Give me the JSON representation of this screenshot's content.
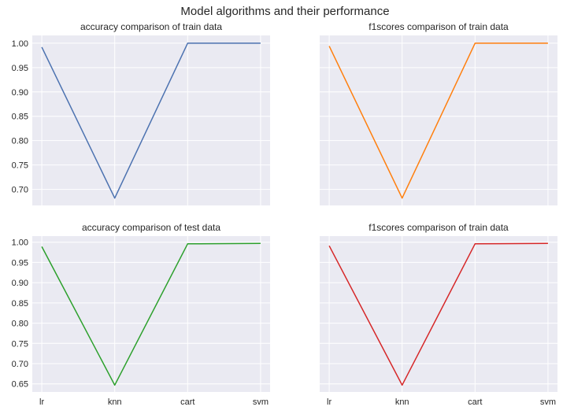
{
  "figure": {
    "title": "Model algorithms and their performance"
  },
  "chart_data": [
    {
      "type": "line",
      "title": "accuracy comparison of train data",
      "categories": [
        "lr",
        "knn",
        "cart",
        "svm"
      ],
      "series": [
        {
          "values": [
            0.992,
            0.682,
            1.0,
            1.0
          ],
          "color": "#4c72b0"
        }
      ],
      "yticks": [
        0.7,
        0.75,
        0.8,
        0.85,
        0.9,
        0.95,
        1.0
      ],
      "ylim": [
        0.667,
        1.016
      ],
      "show_xticklabels": false,
      "show_yticklabels": true,
      "grid": true
    },
    {
      "type": "line",
      "title": "f1scores comparison of train data",
      "categories": [
        "lr",
        "knn",
        "cart",
        "svm"
      ],
      "series": [
        {
          "values": [
            0.994,
            0.682,
            1.0,
            1.0
          ],
          "color": "#ff7f0e"
        }
      ],
      "yticks": [
        0.7,
        0.75,
        0.8,
        0.85,
        0.9,
        0.95,
        1.0
      ],
      "ylim": [
        0.667,
        1.016
      ],
      "show_xticklabels": false,
      "show_yticklabels": false,
      "grid": true
    },
    {
      "type": "line",
      "title": "accuracy comparison of test data",
      "categories": [
        "lr",
        "knn",
        "cart",
        "svm"
      ],
      "series": [
        {
          "values": [
            0.989,
            0.647,
            0.996,
            0.997
          ],
          "color": "#2ca02c"
        }
      ],
      "yticks": [
        0.65,
        0.7,
        0.75,
        0.8,
        0.85,
        0.9,
        0.95,
        1.0
      ],
      "ylim": [
        0.63,
        1.015
      ],
      "show_xticklabels": true,
      "show_yticklabels": true,
      "grid": true
    },
    {
      "type": "line",
      "title": "f1scores comparison of train data",
      "categories": [
        "lr",
        "knn",
        "cart",
        "svm"
      ],
      "series": [
        {
          "values": [
            0.991,
            0.647,
            0.996,
            0.997
          ],
          "color": "#d62728"
        }
      ],
      "yticks": [
        0.65,
        0.7,
        0.75,
        0.8,
        0.85,
        0.9,
        0.95,
        1.0
      ],
      "ylim": [
        0.63,
        1.015
      ],
      "show_xticklabels": true,
      "show_yticklabels": false,
      "grid": true
    }
  ]
}
